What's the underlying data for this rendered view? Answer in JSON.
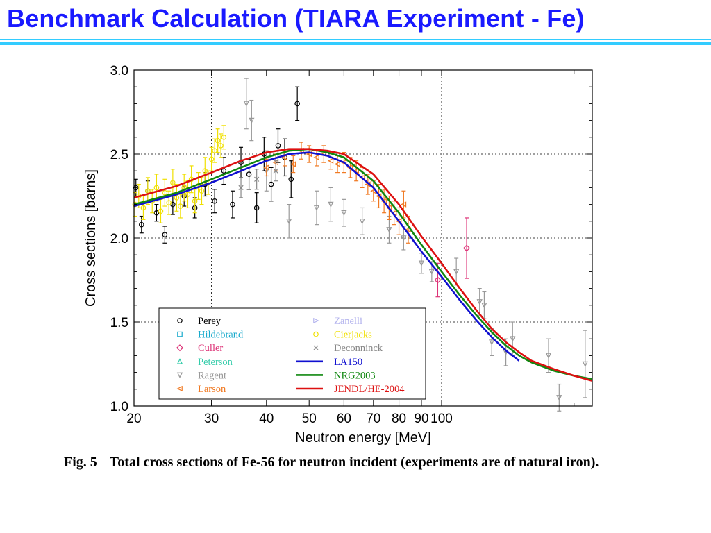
{
  "slide": {
    "title": "Benchmark Calculation (TIARA Experiment - Fe)"
  },
  "caption": {
    "label": "Fig. 5",
    "text": "Total cross sections of Fe-56 for neutron incident (experiments are of natural iron)."
  },
  "colors": {
    "title": "#1a1aff",
    "rule": "#33ccff"
  },
  "chart_data": {
    "type": "scatter",
    "xlabel": "Neutron energy [MeV]",
    "ylabel": "Cross sections [barns]",
    "xscale": "log",
    "xlim": [
      20,
      220
    ],
    "ylim": [
      1.0,
      3.0
    ],
    "xticks": [
      20,
      30,
      40,
      50,
      60,
      70,
      80,
      90,
      100
    ],
    "xtick_labels": [
      "20",
      "30",
      "40",
      "50",
      "60",
      "70",
      "80",
      "90",
      "100"
    ],
    "yticks": [
      1.0,
      1.5,
      2.0,
      2.5,
      3.0
    ],
    "ytick_labels": [
      "1.0",
      "1.5",
      "2.0",
      "2.5",
      "3.0"
    ],
    "grid": "dotted lines at x=30, x=100, y=1.5, y=2.0, y=2.5",
    "legend_position": "bottom-left",
    "legend": [
      {
        "name": "Perey",
        "marker": "circle",
        "color": "#000000"
      },
      {
        "name": "Zanelli",
        "marker": "triangle-right",
        "color": "#b4b4ee"
      },
      {
        "name": "Hildebrand",
        "marker": "square",
        "color": "#18aacc"
      },
      {
        "name": "Cierjacks",
        "marker": "circle",
        "color": "#f0e000"
      },
      {
        "name": "Culler",
        "marker": "diamond",
        "color": "#dd3377"
      },
      {
        "name": "Deconninck",
        "marker": "x",
        "color": "#888888"
      },
      {
        "name": "Peterson",
        "marker": "triangle-up",
        "color": "#33ccaa"
      },
      {
        "name": "LA150",
        "marker": "line",
        "color": "#1010d0"
      },
      {
        "name": "Ragent",
        "marker": "triangle-down",
        "color": "#999999"
      },
      {
        "name": "NRG2003",
        "marker": "line",
        "color": "#108810"
      },
      {
        "name": "Larson",
        "marker": "triangle-left",
        "color": "#f07820"
      },
      {
        "name": "JENDL/HE-2004",
        "marker": "line",
        "color": "#dd1010"
      }
    ],
    "curves": [
      {
        "name": "LA150",
        "color": "#1010d0",
        "x": [
          20,
          25,
          30,
          35,
          40,
          45,
          50,
          55,
          60,
          70,
          80,
          90,
          100,
          110,
          120,
          130,
          140,
          150
        ],
        "y": [
          2.19,
          2.26,
          2.33,
          2.4,
          2.46,
          2.5,
          2.51,
          2.49,
          2.45,
          2.3,
          2.1,
          1.92,
          1.77,
          1.63,
          1.51,
          1.41,
          1.33,
          1.27
        ]
      },
      {
        "name": "NRG2003",
        "color": "#108810",
        "x": [
          20,
          25,
          30,
          35,
          40,
          45,
          50,
          55,
          60,
          70,
          80,
          90,
          100,
          110,
          120,
          130,
          140,
          150,
          160,
          180,
          200,
          220
        ],
        "y": [
          2.2,
          2.27,
          2.35,
          2.42,
          2.48,
          2.52,
          2.53,
          2.51,
          2.48,
          2.34,
          2.15,
          1.96,
          1.8,
          1.66,
          1.54,
          1.44,
          1.36,
          1.3,
          1.26,
          1.21,
          1.18,
          1.16
        ]
      },
      {
        "name": "JENDL/HE-2004",
        "color": "#dd1010",
        "x": [
          20,
          25,
          30,
          35,
          40,
          45,
          50,
          55,
          60,
          70,
          80,
          90,
          100,
          110,
          120,
          130,
          140,
          150,
          160,
          180,
          200,
          220
        ],
        "y": [
          2.24,
          2.31,
          2.39,
          2.46,
          2.51,
          2.53,
          2.53,
          2.52,
          2.5,
          2.38,
          2.2,
          2.01,
          1.85,
          1.7,
          1.57,
          1.46,
          1.38,
          1.32,
          1.27,
          1.22,
          1.18,
          1.15
        ]
      }
    ],
    "series": [
      {
        "name": "Perey",
        "color": "#000000",
        "marker": "circle",
        "x": [
          20.2,
          20.8,
          21.5,
          22.5,
          23.5,
          24.5,
          26,
          27.5,
          29,
          30.5,
          32,
          33.5,
          35,
          36.5,
          38,
          39.5,
          41,
          42.5,
          44,
          45.5,
          47
        ],
        "y": [
          2.3,
          2.08,
          2.28,
          2.15,
          2.02,
          2.2,
          2.25,
          2.18,
          2.32,
          2.22,
          2.4,
          2.2,
          2.45,
          2.38,
          2.18,
          2.5,
          2.32,
          2.55,
          2.48,
          2.35,
          2.8
        ],
        "err": [
          0.05,
          0.05,
          0.06,
          0.05,
          0.05,
          0.06,
          0.06,
          0.06,
          0.07,
          0.07,
          0.08,
          0.08,
          0.09,
          0.09,
          0.09,
          0.1,
          0.1,
          0.1,
          0.11,
          0.11,
          0.1
        ]
      },
      {
        "name": "Cierjacks",
        "color": "#f0e000",
        "marker": "circle",
        "x": [
          20.1,
          20.5,
          21,
          21.5,
          22,
          22.5,
          23,
          23.5,
          24,
          24.5,
          25,
          25.5,
          26,
          26.5,
          27,
          27.5,
          28,
          28.5,
          29,
          29.5,
          30,
          30.5,
          31,
          31.5,
          32
        ],
        "y": [
          2.2,
          2.25,
          2.18,
          2.28,
          2.22,
          2.3,
          2.16,
          2.27,
          2.21,
          2.33,
          2.24,
          2.19,
          2.3,
          2.26,
          2.35,
          2.22,
          2.31,
          2.28,
          2.4,
          2.33,
          2.47,
          2.52,
          2.58,
          2.55,
          2.6
        ],
        "err": [
          0.07,
          0.07,
          0.07,
          0.08,
          0.07,
          0.08,
          0.07,
          0.08,
          0.07,
          0.08,
          0.08,
          0.07,
          0.08,
          0.08,
          0.08,
          0.07,
          0.08,
          0.08,
          0.08,
          0.07,
          0.07,
          0.07,
          0.07,
          0.07,
          0.07
        ]
      },
      {
        "name": "Ragent",
        "color": "#999999",
        "marker": "triangle-down",
        "x": [
          36,
          37,
          40,
          45,
          52,
          56,
          60,
          66,
          76,
          82,
          90,
          95,
          108,
          122,
          125,
          130,
          140,
          145,
          175,
          185,
          212
        ],
        "y": [
          2.8,
          2.7,
          2.4,
          2.1,
          2.18,
          2.2,
          2.15,
          2.1,
          2.05,
          2.0,
          1.85,
          1.8,
          1.8,
          1.62,
          1.6,
          1.38,
          1.32,
          1.4,
          1.3,
          1.05,
          1.25
        ],
        "err": [
          0.15,
          0.12,
          0.12,
          0.1,
          0.1,
          0.1,
          0.08,
          0.08,
          0.08,
          0.07,
          0.06,
          0.06,
          0.08,
          0.08,
          0.08,
          0.08,
          0.08,
          0.1,
          0.1,
          0.08,
          0.2
        ]
      },
      {
        "name": "Larson",
        "color": "#f07820",
        "marker": "triangle-left",
        "x": [
          40,
          42,
          44,
          46,
          48,
          50,
          52,
          54,
          56,
          58,
          60,
          62,
          64,
          66,
          68,
          70,
          72,
          74,
          76,
          78,
          80,
          82,
          84
        ],
        "y": [
          2.42,
          2.45,
          2.48,
          2.44,
          2.52,
          2.5,
          2.48,
          2.5,
          2.46,
          2.44,
          2.45,
          2.42,
          2.4,
          2.36,
          2.32,
          2.28,
          2.25,
          2.22,
          2.18,
          2.15,
          2.1,
          2.2,
          2.05
        ],
        "err": [
          0.05,
          0.05,
          0.05,
          0.05,
          0.05,
          0.05,
          0.05,
          0.05,
          0.05,
          0.05,
          0.06,
          0.06,
          0.06,
          0.06,
          0.06,
          0.06,
          0.07,
          0.07,
          0.07,
          0.07,
          0.08,
          0.08,
          0.08
        ]
      },
      {
        "name": "Culler",
        "color": "#dd3377",
        "marker": "diamond",
        "x": [
          98,
          114
        ],
        "y": [
          1.75,
          1.94
        ],
        "err": [
          0.1,
          0.18
        ]
      },
      {
        "name": "Deconninck",
        "color": "#888888",
        "marker": "x",
        "x": [
          35,
          38,
          42
        ],
        "y": [
          2.3,
          2.35,
          2.4
        ],
        "err": [
          0.06,
          0.06,
          0.06
        ]
      }
    ]
  }
}
